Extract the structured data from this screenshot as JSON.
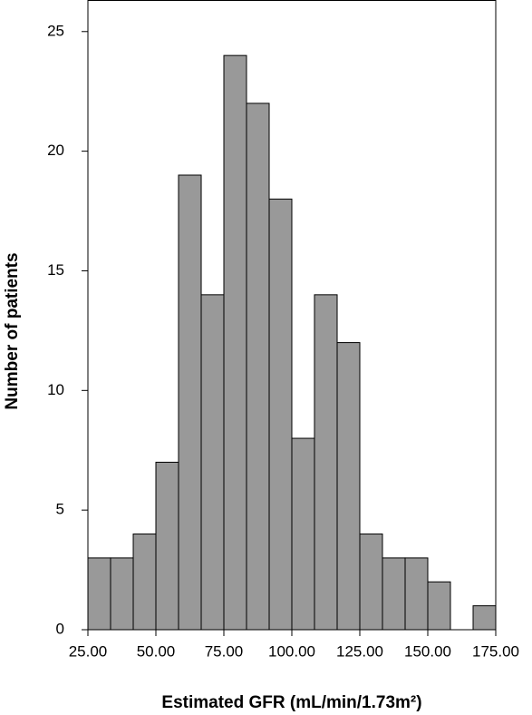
{
  "chart_data": {
    "type": "histogram",
    "x_label": "Estimated GFR (mL/min/1.73m²)",
    "y_label": "Number of patients",
    "bins": [
      25,
      33.33,
      41.67,
      50,
      58.33,
      66.67,
      75,
      83.33,
      91.67,
      100,
      108.33,
      116.67,
      125,
      133.33,
      141.67,
      150,
      158.33,
      166.67,
      175
    ],
    "values": [
      3,
      3,
      4,
      7,
      19,
      14,
      24,
      22,
      18,
      8,
      14,
      12,
      4,
      3,
      3,
      2,
      0,
      1
    ],
    "color": "#999999",
    "xlim": [
      25,
      175
    ],
    "xticks": [
      {
        "value": 25,
        "label": "25.00"
      },
      {
        "value": 50,
        "label": "50.00"
      },
      {
        "value": 75,
        "label": "75.00"
      },
      {
        "value": 100,
        "label": "100.00"
      },
      {
        "value": 125,
        "label": "125.00"
      },
      {
        "value": 150,
        "label": "150.00"
      },
      {
        "value": 175,
        "label": "175.00"
      }
    ],
    "ylim": [
      0,
      26.3
    ],
    "yticks": [
      0,
      5,
      10,
      15,
      20,
      25
    ]
  }
}
